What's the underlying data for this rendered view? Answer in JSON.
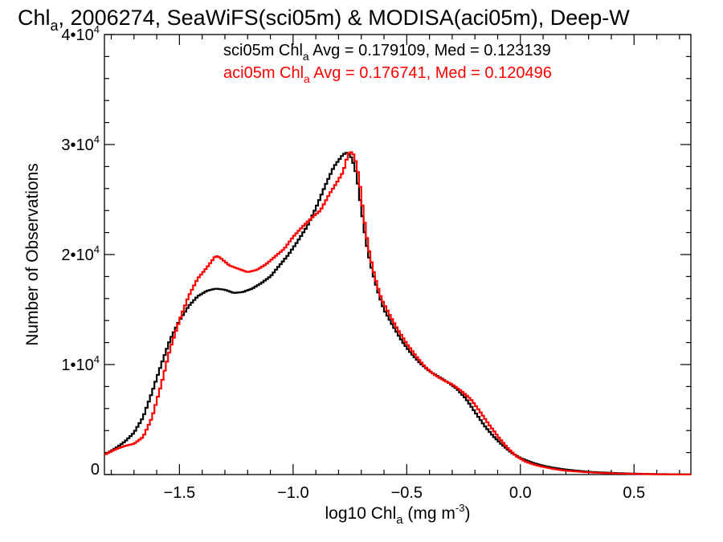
{
  "chart_data": {
    "type": "line",
    "title": {
      "prefix": "Chl",
      "sub": "a",
      "suffix": ", 2006274, SeaWiFS(sci05m) & MODISA(aci05m), Deep-W"
    },
    "xlabel": {
      "prefix": "log10 Chl",
      "sub": "a",
      "mid": " (mg m",
      "sup": "-3",
      "suffix": ")"
    },
    "ylabel": "Number of Observations",
    "xlim": [
      -1.83,
      0.75
    ],
    "ylim": [
      0,
      40000
    ],
    "x_ticks": [
      {
        "value": -1.5,
        "label": "−1.5"
      },
      {
        "value": -1.0,
        "label": "−1.0"
      },
      {
        "value": -0.5,
        "label": "−0.5"
      },
      {
        "value": 0.0,
        "label": "0.0"
      },
      {
        "value": 0.5,
        "label": "0.5"
      }
    ],
    "y_ticks": [
      {
        "value": 0,
        "mantissa": "0",
        "exponent": ""
      },
      {
        "value": 10000,
        "mantissa": "1•10",
        "exponent": "4"
      },
      {
        "value": 20000,
        "mantissa": "2•10",
        "exponent": "4"
      },
      {
        "value": 30000,
        "mantissa": "3•10",
        "exponent": "4"
      },
      {
        "value": 40000,
        "mantissa": "4•10",
        "exponent": "4"
      }
    ],
    "grid": false,
    "annotations": [
      {
        "prefix": "sci05m Chl",
        "sub": "a",
        "suffix": " Avg = 0.179109, Med = 0.123139",
        "color": "#000000"
      },
      {
        "prefix": "aci05m Chl",
        "sub": "a",
        "suffix": " Avg = 0.176741, Med = 0.120496",
        "color": "#ff0000"
      }
    ],
    "series": [
      {
        "key": "sci05m",
        "color": "#000000",
        "points": [
          [
            -1.83,
            1800
          ],
          [
            -1.78,
            2400
          ],
          [
            -1.74,
            3000
          ],
          [
            -1.7,
            3800
          ],
          [
            -1.66,
            5200
          ],
          [
            -1.62,
            7500
          ],
          [
            -1.58,
            10000
          ],
          [
            -1.54,
            12300
          ],
          [
            -1.5,
            14000
          ],
          [
            -1.46,
            15300
          ],
          [
            -1.42,
            16200
          ],
          [
            -1.38,
            16700
          ],
          [
            -1.34,
            16900
          ],
          [
            -1.3,
            16800
          ],
          [
            -1.26,
            16500
          ],
          [
            -1.22,
            16600
          ],
          [
            -1.18,
            16900
          ],
          [
            -1.14,
            17400
          ],
          [
            -1.1,
            18000
          ],
          [
            -1.06,
            19000
          ],
          [
            -1.02,
            20000
          ],
          [
            -0.98,
            21200
          ],
          [
            -0.94,
            22500
          ],
          [
            -0.9,
            24200
          ],
          [
            -0.86,
            26200
          ],
          [
            -0.82,
            28000
          ],
          [
            -0.78,
            29100
          ],
          [
            -0.76,
            29300
          ],
          [
            -0.74,
            28700
          ],
          [
            -0.72,
            27200
          ],
          [
            -0.7,
            24200
          ],
          [
            -0.68,
            21300
          ],
          [
            -0.66,
            19200
          ],
          [
            -0.64,
            17600
          ],
          [
            -0.62,
            16200
          ],
          [
            -0.6,
            15000
          ],
          [
            -0.56,
            13500
          ],
          [
            -0.52,
            12100
          ],
          [
            -0.48,
            11000
          ],
          [
            -0.44,
            10100
          ],
          [
            -0.4,
            9400
          ],
          [
            -0.36,
            8900
          ],
          [
            -0.32,
            8400
          ],
          [
            -0.28,
            7800
          ],
          [
            -0.24,
            6900
          ],
          [
            -0.2,
            5700
          ],
          [
            -0.16,
            4500
          ],
          [
            -0.12,
            3500
          ],
          [
            -0.08,
            2700
          ],
          [
            -0.04,
            2000
          ],
          [
            0.0,
            1500
          ],
          [
            0.05,
            1100
          ],
          [
            0.1,
            800
          ],
          [
            0.15,
            600
          ],
          [
            0.2,
            450
          ],
          [
            0.3,
            250
          ],
          [
            0.4,
            150
          ],
          [
            0.5,
            80
          ],
          [
            0.6,
            40
          ],
          [
            0.75,
            15
          ]
        ]
      },
      {
        "key": "aci05m",
        "color": "#ff0000",
        "points": [
          [
            -1.83,
            1800
          ],
          [
            -1.78,
            2300
          ],
          [
            -1.74,
            2600
          ],
          [
            -1.7,
            2800
          ],
          [
            -1.66,
            3400
          ],
          [
            -1.62,
            5200
          ],
          [
            -1.58,
            8200
          ],
          [
            -1.54,
            11500
          ],
          [
            -1.5,
            14000
          ],
          [
            -1.46,
            16200
          ],
          [
            -1.42,
            17800
          ],
          [
            -1.38,
            18800
          ],
          [
            -1.34,
            19900
          ],
          [
            -1.32,
            19700
          ],
          [
            -1.28,
            19000
          ],
          [
            -1.24,
            18700
          ],
          [
            -1.2,
            18400
          ],
          [
            -1.16,
            18600
          ],
          [
            -1.12,
            19100
          ],
          [
            -1.08,
            19800
          ],
          [
            -1.04,
            20500
          ],
          [
            -1.0,
            21600
          ],
          [
            -0.96,
            22500
          ],
          [
            -0.92,
            23300
          ],
          [
            -0.88,
            24000
          ],
          [
            -0.84,
            25500
          ],
          [
            -0.8,
            26800
          ],
          [
            -0.78,
            27500
          ],
          [
            -0.76,
            29000
          ],
          [
            -0.75,
            29400
          ],
          [
            -0.73,
            29000
          ],
          [
            -0.71,
            27000
          ],
          [
            -0.69,
            23600
          ],
          [
            -0.67,
            20800
          ],
          [
            -0.65,
            18800
          ],
          [
            -0.63,
            17200
          ],
          [
            -0.61,
            15900
          ],
          [
            -0.58,
            14700
          ],
          [
            -0.54,
            13200
          ],
          [
            -0.5,
            11900
          ],
          [
            -0.46,
            10800
          ],
          [
            -0.42,
            9800
          ],
          [
            -0.38,
            9100
          ],
          [
            -0.34,
            8600
          ],
          [
            -0.3,
            8200
          ],
          [
            -0.26,
            7600
          ],
          [
            -0.22,
            6900
          ],
          [
            -0.18,
            5800
          ],
          [
            -0.14,
            4600
          ],
          [
            -0.1,
            3500
          ],
          [
            -0.06,
            2500
          ],
          [
            -0.02,
            1700
          ],
          [
            0.02,
            1200
          ],
          [
            0.06,
            900
          ],
          [
            0.1,
            700
          ],
          [
            0.15,
            500
          ],
          [
            0.2,
            350
          ],
          [
            0.3,
            200
          ],
          [
            0.4,
            110
          ],
          [
            0.5,
            60
          ],
          [
            0.6,
            30
          ],
          [
            0.75,
            10
          ]
        ]
      }
    ]
  }
}
